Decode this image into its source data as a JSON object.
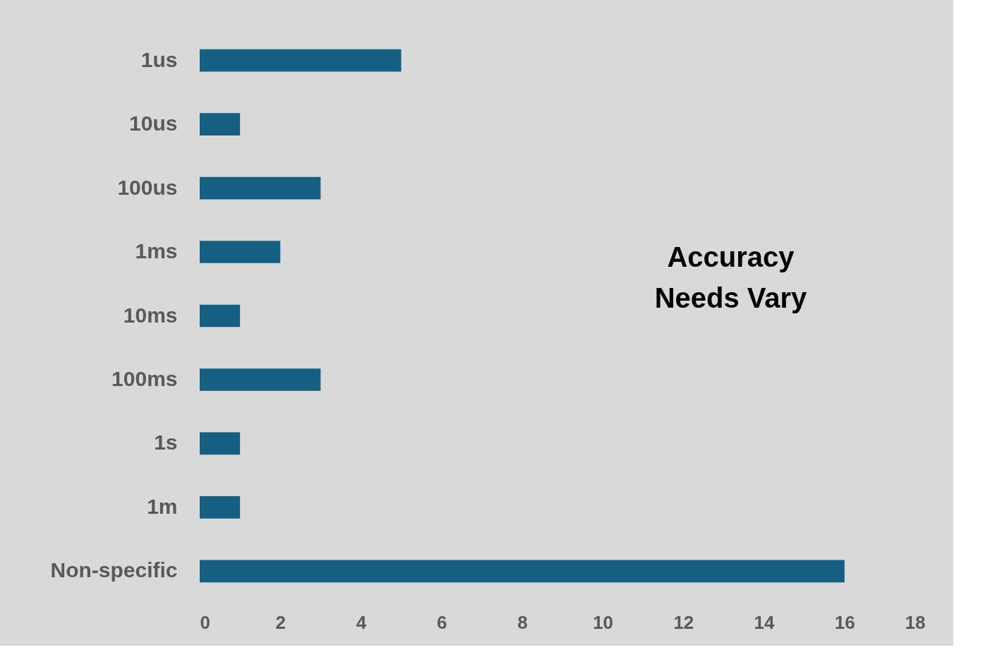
{
  "chart_data": {
    "type": "bar",
    "orientation": "horizontal",
    "categories": [
      "1us",
      "10us",
      "100us",
      "1ms",
      "10ms",
      "100ms",
      "1s",
      "1m",
      "Non-specific"
    ],
    "values": [
      5,
      1,
      3,
      2,
      1,
      3,
      1,
      1,
      16
    ],
    "color": "#155f82",
    "xlim": [
      0,
      18
    ],
    "xticks": [
      0,
      2,
      4,
      6,
      8,
      10,
      12,
      14,
      16,
      18
    ],
    "annotations": [
      "Accuracy Needs Vary"
    ]
  }
}
